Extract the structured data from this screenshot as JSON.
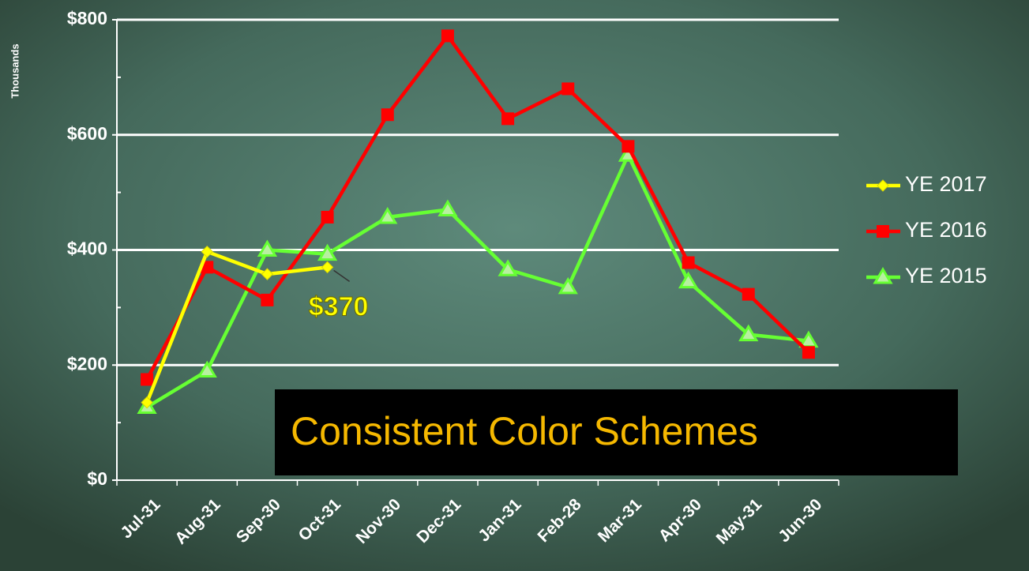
{
  "chart_data": {
    "type": "line",
    "y_axis_label": "Thousands",
    "categories": [
      "Jul-31",
      "Aug-31",
      "Sep-30",
      "Oct-31",
      "Nov-30",
      "Dec-31",
      "Jan-31",
      "Feb-28",
      "Mar-31",
      "Apr-30",
      "May-31",
      "Jun-30"
    ],
    "series": [
      {
        "name": "YE 2017",
        "color": "#ffff00",
        "marker": "diamond",
        "values": [
          135,
          397,
          358,
          370,
          null,
          null,
          null,
          null,
          null,
          null,
          null,
          null
        ],
        "value_labels": [
          null,
          null,
          null,
          "$370",
          null,
          null,
          null,
          null,
          null,
          null,
          null,
          null
        ]
      },
      {
        "name": "YE 2016",
        "color": "#ff0000",
        "marker": "square",
        "values": [
          175,
          370,
          313,
          457,
          635,
          772,
          628,
          680,
          580,
          378,
          323,
          222
        ]
      },
      {
        "name": "YE 2015",
        "color": "#66ff33",
        "marker": "triangle",
        "values": [
          127,
          190,
          400,
          393,
          457,
          470,
          366,
          335,
          565,
          345,
          253,
          242
        ]
      }
    ],
    "ylim": [
      0,
      800
    ],
    "yticks": [
      {
        "value": 0,
        "label": "$0"
      },
      {
        "value": 200,
        "label": "$200"
      },
      {
        "value": 400,
        "label": "$400"
      },
      {
        "value": 600,
        "label": "$600"
      },
      {
        "value": 800,
        "label": "$800"
      }
    ],
    "minor_yticks": [
      100,
      300,
      500,
      700
    ],
    "grid": true,
    "legend": "right",
    "caption": "Consistent Color Schemes"
  }
}
